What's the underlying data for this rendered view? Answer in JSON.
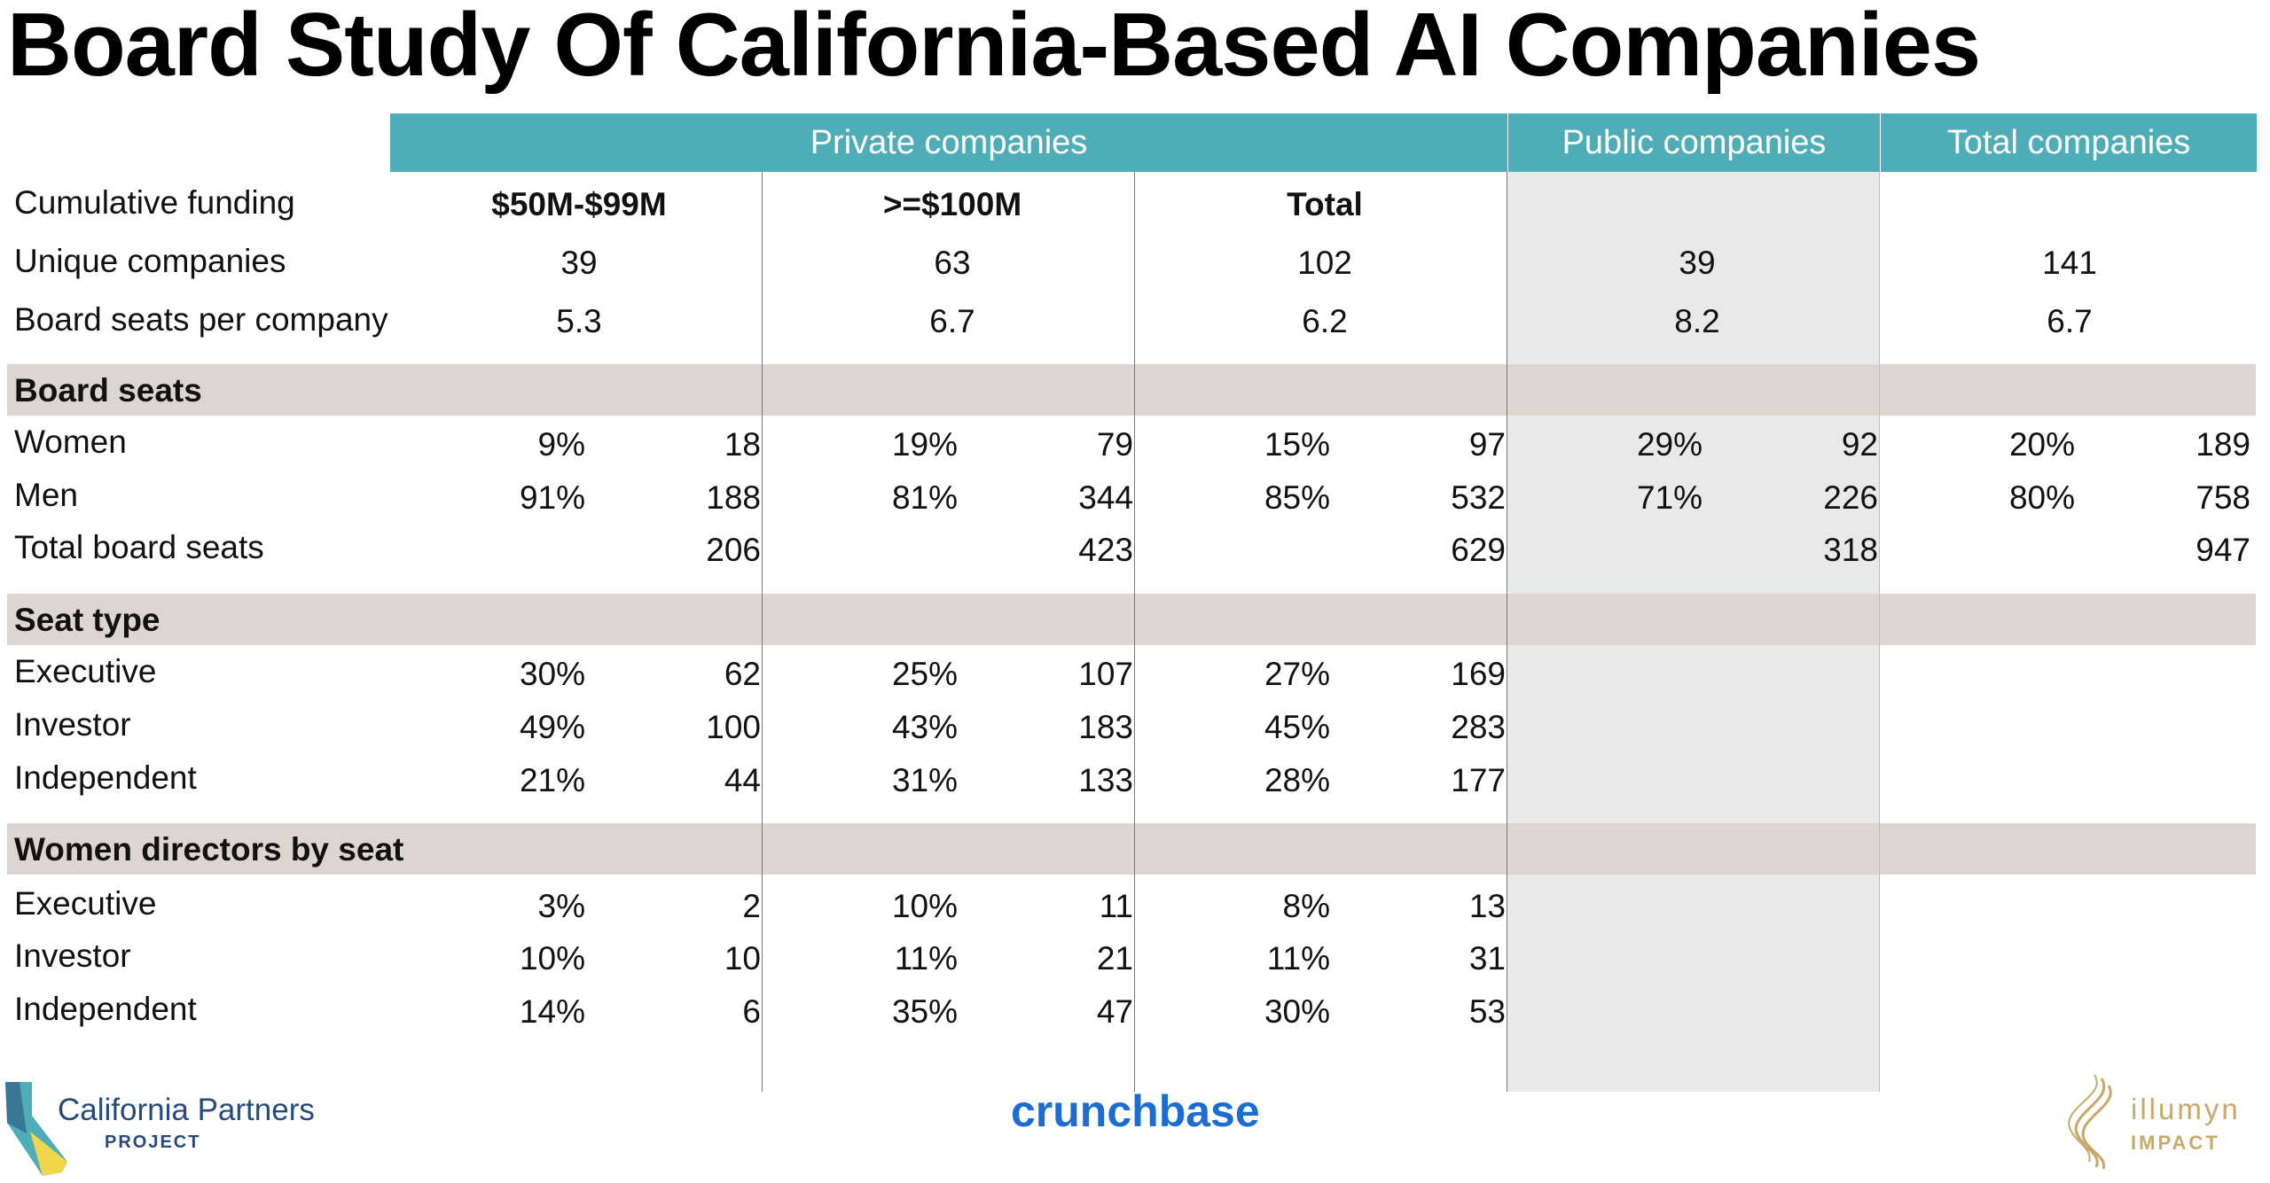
{
  "title": "Board Study Of California-Based AI Companies",
  "header_groups": {
    "private": "Private companies",
    "public": "Public companies",
    "total": "Total companies"
  },
  "rows": {
    "cumulative_funding": {
      "label": "Cumulative funding",
      "tier_50_99": "$50M-$99M",
      "tier_100": ">=$100M",
      "private_total": "Total"
    },
    "unique_companies": {
      "label": "Unique companies",
      "values": [
        "39",
        "63",
        "102",
        "39",
        "141"
      ]
    },
    "board_seats_per_company": {
      "label": "Board seats per company",
      "values": [
        "5.3",
        "6.7",
        "6.2",
        "8.2",
        "6.7"
      ]
    }
  },
  "sections": {
    "board_seats": {
      "title": "Board seats",
      "women": {
        "label": "Women",
        "pct": [
          "9%",
          "19%",
          "15%",
          "29%",
          "20%"
        ],
        "count": [
          "18",
          "79",
          "97",
          "92",
          "189"
        ]
      },
      "men": {
        "label": "Men",
        "pct": [
          "91%",
          "81%",
          "85%",
          "71%",
          "80%"
        ],
        "count": [
          "188",
          "344",
          "532",
          "226",
          "758"
        ]
      },
      "total": {
        "label": "Total board seats",
        "count": [
          "206",
          "423",
          "629",
          "318",
          "947"
        ]
      }
    },
    "seat_type": {
      "title": "Seat type",
      "executive": {
        "label": "Executive",
        "pct": [
          "30%",
          "25%",
          "27%"
        ],
        "count": [
          "62",
          "107",
          "169"
        ]
      },
      "investor": {
        "label": "Investor",
        "pct": [
          "49%",
          "43%",
          "45%"
        ],
        "count": [
          "100",
          "183",
          "283"
        ]
      },
      "independent": {
        "label": "Independent",
        "pct": [
          "21%",
          "31%",
          "28%"
        ],
        "count": [
          "44",
          "133",
          "177"
        ]
      }
    },
    "women_directors": {
      "title": "Women directors by seat",
      "executive": {
        "label": "Executive",
        "pct": [
          "3%",
          "10%",
          "8%"
        ],
        "count": [
          "2",
          "11",
          "13"
        ]
      },
      "investor": {
        "label": "Investor",
        "pct": [
          "10%",
          "11%",
          "11%"
        ],
        "count": [
          "10",
          "21",
          "31"
        ]
      },
      "independent": {
        "label": "Independent",
        "pct": [
          "14%",
          "35%",
          "30%"
        ],
        "count": [
          "6",
          "47",
          "53"
        ]
      }
    }
  },
  "footer": {
    "cpp_name": "California Partners",
    "cpp_sub": "PROJECT",
    "crunchbase": "crunchbase",
    "illumyn_name": "illumyn",
    "illumyn_sub": "IMPACT"
  },
  "colors": {
    "header_teal": "#4fadb7",
    "band_gray": "#dcd5d2",
    "public_shade": "#e9e9e9",
    "crunchbase_blue": "#1b6dd1",
    "cpp_navy": "#264a7a",
    "illumyn_gold": "#c9a869"
  }
}
